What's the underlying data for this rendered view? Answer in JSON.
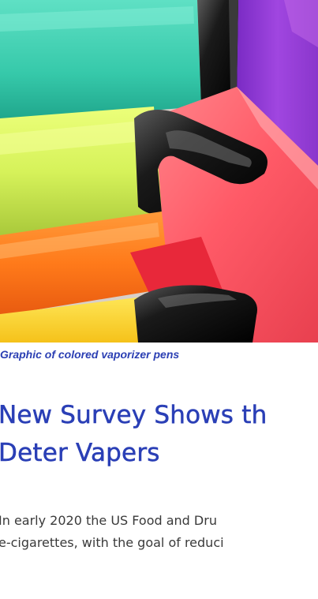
{
  "figure": {
    "caption": "Graphic of colored vaporizer pens"
  },
  "article": {
    "headline_line1": "New Survey Shows th",
    "headline_line2": "Deter Vapers",
    "body_line1": "In early 2020 the US Food and Dru",
    "body_line2": "e-cigarettes, with the goal of reduci"
  }
}
